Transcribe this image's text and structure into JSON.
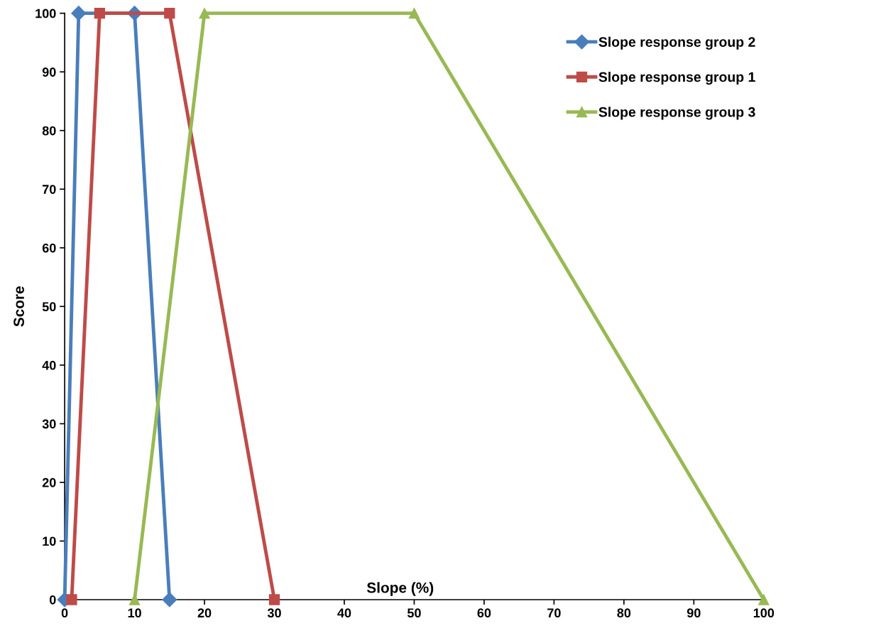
{
  "chart_data": {
    "type": "line",
    "xlabel": "Slope (%)",
    "ylabel": "Score",
    "xlim": [
      0,
      100
    ],
    "xticks": [
      0,
      10,
      20,
      30,
      40,
      50,
      60,
      70,
      80,
      90,
      100
    ],
    "ylim": [
      0,
      100
    ],
    "yticks": [
      0,
      10,
      20,
      30,
      40,
      50,
      60,
      70,
      80,
      90,
      100
    ],
    "grid": false,
    "legend": "top right",
    "line_style": "solid",
    "series": [
      {
        "name": "Slope response group 2",
        "color": "#4a7ebb",
        "marker": "diamond",
        "x": [
          0,
          2,
          10,
          15
        ],
        "values": [
          0,
          100,
          100,
          0
        ]
      },
      {
        "name": "Slope response group 1",
        "color": "#be4b48",
        "marker": "square",
        "x": [
          1,
          5,
          15,
          30
        ],
        "values": [
          0,
          100,
          100,
          0
        ]
      },
      {
        "name": "Slope response group 3",
        "color": "#98b954",
        "marker": "triangle",
        "x": [
          10,
          20,
          50,
          100
        ],
        "values": [
          0,
          100,
          100,
          0
        ]
      }
    ]
  }
}
